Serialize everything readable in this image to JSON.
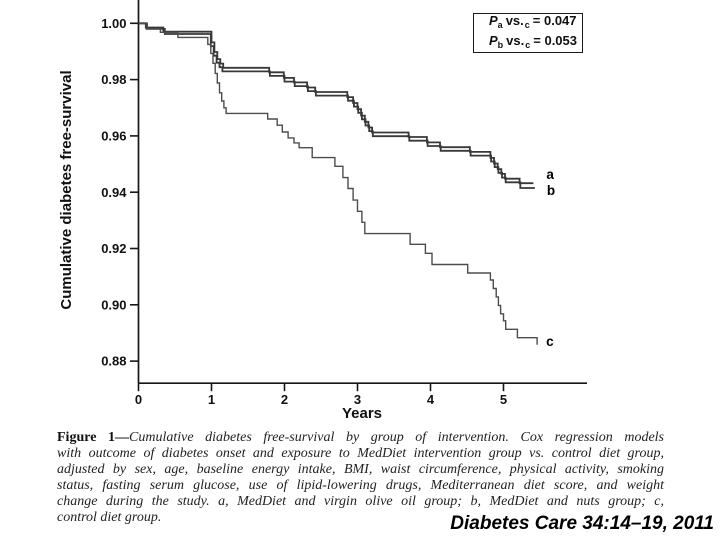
{
  "chart_data": {
    "type": "line",
    "subtype": "kaplan-meier-step",
    "title": "",
    "xlabel": "Years",
    "ylabel": "Cumulative diabetes free-survival",
    "xlim": [
      0,
      6.15
    ],
    "ylim": [
      0.874,
      1.004
    ],
    "x_ticks": [
      0,
      1,
      2,
      3,
      4,
      5
    ],
    "y_ticks": [
      1.0,
      0.98,
      0.96,
      0.94,
      0.92,
      0.9,
      0.88
    ],
    "grid": "off",
    "legend_position": "top-right-box",
    "p_values": [
      {
        "p": "P",
        "sub1": "a",
        "vs": "vs.",
        "sub2": "c",
        "eq": "= 0.047"
      },
      {
        "p": "P",
        "sub1": "b",
        "vs": "vs.",
        "sub2": "c",
        "eq": "= 0.053"
      }
    ],
    "series": [
      {
        "name": "a",
        "label": "a",
        "desc": "MedDiet and virgin olive oil group",
        "color": "#383838",
        "width": 1.8,
        "label_dx": 13,
        "label_dy": -4,
        "points": [
          [
            0,
            1.0
          ],
          [
            0.1,
            0.9985
          ],
          [
            0.34,
            0.997
          ],
          [
            1.0,
            0.9932
          ],
          [
            1.04,
            0.9898
          ],
          [
            1.08,
            0.9873
          ],
          [
            1.12,
            0.9857
          ],
          [
            1.16,
            0.9842
          ],
          [
            1.79,
            0.9826
          ],
          [
            1.99,
            0.9806
          ],
          [
            2.13,
            0.979
          ],
          [
            2.31,
            0.9772
          ],
          [
            2.42,
            0.9756
          ],
          [
            2.86,
            0.9738
          ],
          [
            2.94,
            0.9717
          ],
          [
            3.0,
            0.9695
          ],
          [
            3.05,
            0.9672
          ],
          [
            3.1,
            0.965
          ],
          [
            3.15,
            0.963
          ],
          [
            3.2,
            0.9612
          ],
          [
            3.7,
            0.9596
          ],
          [
            3.95,
            0.9577
          ],
          [
            4.13,
            0.956
          ],
          [
            4.54,
            0.9543
          ],
          [
            4.82,
            0.9522
          ],
          [
            4.87,
            0.9502
          ],
          [
            4.92,
            0.9482
          ],
          [
            4.97,
            0.9465
          ],
          [
            5.02,
            0.9448
          ],
          [
            5.22,
            0.9432
          ],
          [
            5.41,
            0.9432
          ]
        ]
      },
      {
        "name": "b",
        "label": "b",
        "desc": "MedDiet and nuts group",
        "color": "#383838",
        "width": 1.8,
        "label_dx": 12,
        "label_dy": 7,
        "points": [
          [
            0,
            1.0
          ],
          [
            0.11,
            0.998
          ],
          [
            0.36,
            0.9962
          ],
          [
            0.99,
            0.9919
          ],
          [
            1.03,
            0.9885
          ],
          [
            1.07,
            0.986
          ],
          [
            1.11,
            0.9844
          ],
          [
            1.15,
            0.9829
          ],
          [
            1.8,
            0.9813
          ],
          [
            2.0,
            0.9793
          ],
          [
            2.14,
            0.9777
          ],
          [
            2.32,
            0.9759
          ],
          [
            2.43,
            0.9743
          ],
          [
            2.87,
            0.9725
          ],
          [
            2.95,
            0.9704
          ],
          [
            3.01,
            0.9682
          ],
          [
            3.06,
            0.9659
          ],
          [
            3.11,
            0.9637
          ],
          [
            3.16,
            0.9617
          ],
          [
            3.21,
            0.9599
          ],
          [
            3.71,
            0.9583
          ],
          [
            3.96,
            0.9564
          ],
          [
            4.14,
            0.9547
          ],
          [
            4.55,
            0.953
          ],
          [
            4.83,
            0.9509
          ],
          [
            4.88,
            0.9489
          ],
          [
            4.93,
            0.9469
          ],
          [
            4.98,
            0.9452
          ],
          [
            5.03,
            0.9435
          ],
          [
            5.23,
            0.9415
          ],
          [
            5.43,
            0.9415
          ]
        ]
      },
      {
        "name": "c",
        "label": "c",
        "desc": "control diet group",
        "color": "#4d4d4d",
        "width": 1.4,
        "label_dx": 9,
        "label_dy": 1,
        "points": [
          [
            0,
            1.0
          ],
          [
            0.12,
            0.998
          ],
          [
            0.3,
            0.9968
          ],
          [
            0.54,
            0.995
          ],
          [
            0.95,
            0.9925
          ],
          [
            0.99,
            0.9893
          ],
          [
            1.02,
            0.9858
          ],
          [
            1.05,
            0.9822
          ],
          [
            1.08,
            0.9788
          ],
          [
            1.11,
            0.9753
          ],
          [
            1.14,
            0.9724
          ],
          [
            1.17,
            0.97
          ],
          [
            1.2,
            0.968
          ],
          [
            1.77,
            0.966
          ],
          [
            1.9,
            0.9638
          ],
          [
            1.97,
            0.9614
          ],
          [
            2.05,
            0.9593
          ],
          [
            2.13,
            0.9575
          ],
          [
            2.2,
            0.9558
          ],
          [
            2.38,
            0.9523
          ],
          [
            2.69,
            0.9492
          ],
          [
            2.8,
            0.9452
          ],
          [
            2.87,
            0.9413
          ],
          [
            2.94,
            0.9372
          ],
          [
            3.0,
            0.9332
          ],
          [
            3.06,
            0.9293
          ],
          [
            3.1,
            0.9253
          ],
          [
            3.72,
            0.9215
          ],
          [
            3.93,
            0.9183
          ],
          [
            4.02,
            0.9143
          ],
          [
            4.51,
            0.9113
          ],
          [
            4.82,
            0.9088
          ],
          [
            4.86,
            0.9058
          ],
          [
            4.9,
            0.9028
          ],
          [
            4.93,
            0.8998
          ],
          [
            4.96,
            0.8968
          ],
          [
            5.0,
            0.8943
          ],
          [
            5.03,
            0.8913
          ],
          [
            5.19,
            0.8883
          ],
          [
            5.46,
            0.8883
          ],
          [
            5.46,
            0.8858
          ]
        ]
      }
    ]
  },
  "caption": {
    "label": "Figure 1—",
    "lines": [
      "Cumulative diabetes free-survival by group of intervention. Cox regression models",
      "with outcome of diabetes onset and exposure to MedDiet intervention group vs. control diet group,",
      "adjusted by sex, age, baseline energy intake, BMI, waist circumference, physical activity, smoking",
      "status, fasting serum glucose, use of lipid-lowering drugs, Mediterranean diet score, and weight",
      "change during the study. a, MedDiet and virgin olive oil group; b, MedDiet and nuts group; c,",
      "control diet group."
    ]
  },
  "citation": "Diabetes Care 34:14–19, 2011"
}
